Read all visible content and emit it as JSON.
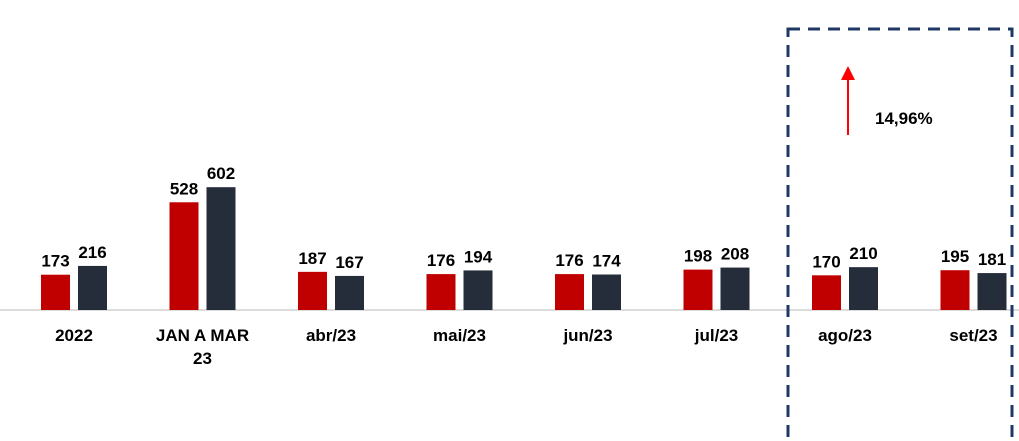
{
  "chart_data": {
    "type": "bar",
    "categories": [
      "2022",
      "JAN A MAR 23",
      "abr/23",
      "mai/23",
      "jun/23",
      "jul/23",
      "ago/23",
      "set/23"
    ],
    "series": [
      {
        "color": "#c00000",
        "values": [
          173,
          528,
          187,
          176,
          176,
          198,
          170,
          195
        ]
      },
      {
        "color": "#262d3a",
        "values": [
          216,
          602,
          167,
          194,
          174,
          208,
          210,
          181
        ]
      }
    ],
    "annotation": "14,96%",
    "annotation_color": "#ff0000"
  }
}
